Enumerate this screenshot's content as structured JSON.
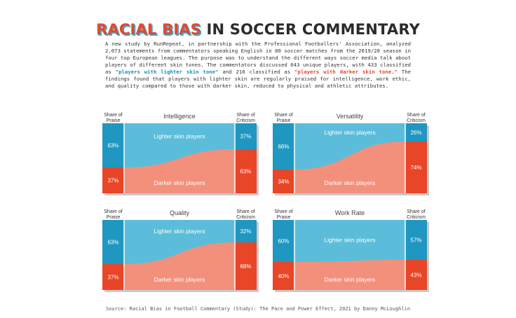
{
  "title": {
    "highlight": "RACIAL BIAS",
    "rest": " IN SOCCER COMMENTARY"
  },
  "intro": {
    "part1": "A new study by RunRepeat, in partnership with the Professional Footballers' Association, analyzed 2,073 statements from commentators speaking English in 80 soccer matches from the 2019/20 season in four top European leagues. The purpose was to understand the different ways soccer media talk about players of different skin tones. The commentators discussed 643 unique players, with 433 classified as ",
    "lighter_highlight": "\"players with lighter skin tone\"",
    "part2": " and 210 classified as ",
    "darker_highlight": "\"players with darker skin tone.\"",
    "part3": " The findings found that players with lighter skin are regularly praised for intelligence, work ethic, and quality compared to those with darker skin, reduced to physical and athletic attributes."
  },
  "colors": {
    "lighter": "#5bbdd9",
    "lighter_dark": "#1f97c1",
    "darker": "#f3907c",
    "darker_dark": "#e94527"
  },
  "chart_data": [
    {
      "type": "sankey",
      "title": "Intelligence",
      "left_label": "Share of Praise",
      "right_label": "Share of Criticism",
      "series": [
        {
          "name": "Lighter skin players",
          "praise": 63,
          "criticism": 37,
          "praise_label": "63%",
          "criticism_label": "37%"
        },
        {
          "name": "Darker skin players",
          "praise": 37,
          "criticism": 63,
          "praise_label": "37%",
          "criticism_label": "63%"
        }
      ]
    },
    {
      "type": "sankey",
      "title": "Versatility",
      "left_label": "Share of Praise",
      "right_label": "Share of Criticism",
      "series": [
        {
          "name": "Lighter skin players",
          "praise": 66,
          "criticism": 26,
          "praise_label": "66%",
          "criticism_label": "26%"
        },
        {
          "name": "Darker skin players",
          "praise": 34,
          "criticism": 74,
          "praise_label": "34%",
          "criticism_label": "74%"
        }
      ]
    },
    {
      "type": "sankey",
      "title": "Quality",
      "left_label": "Share of Praise",
      "right_label": "Share of Criticism",
      "series": [
        {
          "name": "Lighter skin players",
          "praise": 63,
          "criticism": 32,
          "praise_label": "63%",
          "criticism_label": "32%"
        },
        {
          "name": "Darker skin players",
          "praise": 37,
          "criticism": 68,
          "praise_label": "37%",
          "criticism_label": "68%"
        }
      ]
    },
    {
      "type": "sankey",
      "title": "Work Rate",
      "left_label": "Share of Praise",
      "right_label": "Share of Criticism",
      "series": [
        {
          "name": "Lighter skin players",
          "praise": 60,
          "criticism": 57,
          "praise_label": "60%",
          "criticism_label": "57%"
        },
        {
          "name": "Darker skin players",
          "praise": 40,
          "criticism": 43,
          "praise_label": "40%",
          "criticism_label": "43%"
        }
      ]
    }
  ],
  "source": "Source: Racial Bias in Football Commentary (Study): The Pace and Power Effect, 2021 by Danny McLoughlin"
}
